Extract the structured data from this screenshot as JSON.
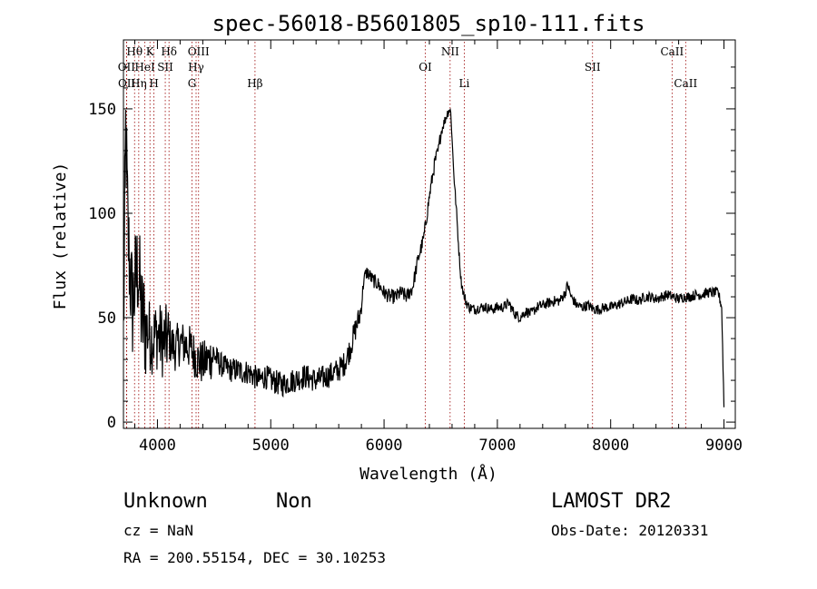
{
  "chart_data": {
    "type": "line",
    "title": "spec-56018-B5601805_sp10-111.fits",
    "xlabel": "Wavelength (Å)",
    "ylabel": "Flux (relative)",
    "xlim": [
      3700,
      9100
    ],
    "ylim": [
      -3,
      183
    ],
    "xticks": [
      4000,
      5000,
      6000,
      7000,
      8000,
      9000
    ],
    "yticks": [
      0,
      50,
      100,
      150
    ],
    "grid": false,
    "series": [
      {
        "x": [
          3700,
          3720,
          3740,
          3760,
          3780,
          3800,
          3830,
          3860,
          3900,
          3950,
          4000,
          4050,
          4100,
          4150,
          4200,
          4250,
          4300,
          4350,
          4400,
          4450,
          4500,
          4550,
          4600,
          4650,
          4700,
          4750,
          4800,
          4850,
          4900,
          4950,
          5000,
          5100,
          5200,
          5300,
          5400,
          5500,
          5600,
          5650,
          5700,
          5750,
          5780,
          5800,
          5820,
          5850,
          5900,
          5950,
          6000,
          6050,
          6100,
          6150,
          6200,
          6250,
          6300,
          6350,
          6400,
          6420,
          6450,
          6480,
          6500,
          6520,
          6540,
          6560,
          6575,
          6590,
          6600,
          6610,
          6620,
          6640,
          6660,
          6680,
          6700,
          6720,
          6750,
          6800,
          6850,
          6900,
          6950,
          7000,
          7050,
          7100,
          7150,
          7200,
          7250,
          7300,
          7350,
          7400,
          7450,
          7500,
          7550,
          7600,
          7620,
          7650,
          7700,
          7750,
          7800,
          7850,
          7900,
          7950,
          8000,
          8050,
          8100,
          8150,
          8200,
          8250,
          8300,
          8350,
          8400,
          8450,
          8500,
          8550,
          8600,
          8650,
          8700,
          8750,
          8800,
          8850,
          8900,
          8950,
          8980,
          9000
        ],
        "values": [
          40,
          140,
          90,
          70,
          55,
          65,
          75,
          50,
          45,
          40,
          42,
          38,
          40,
          35,
          38,
          37,
          35,
          30,
          28,
          30,
          32,
          28,
          26,
          25,
          25,
          24,
          24,
          22,
          20,
          22,
          20,
          18,
          20,
          22,
          20,
          22,
          25,
          28,
          35,
          45,
          50,
          55,
          68,
          72,
          68,
          66,
          62,
          60,
          60,
          62,
          60,
          64,
          78,
          88,
          108,
          115,
          125,
          130,
          138,
          142,
          145,
          148,
          150,
          148,
          135,
          125,
          115,
          100,
          82,
          68,
          62,
          58,
          55,
          54,
          55,
          55,
          54,
          55,
          55,
          57,
          52,
          50,
          53,
          52,
          55,
          56,
          57,
          58,
          58,
          62,
          66,
          60,
          56,
          55,
          56,
          54,
          54,
          55,
          55,
          56,
          57,
          58,
          59,
          58,
          60,
          60,
          59,
          60,
          61,
          60,
          59,
          60,
          60,
          61,
          61,
          62,
          62,
          62,
          55,
          8
        ]
      }
    ],
    "annotations": [
      {
        "text": "Hθ",
        "x": 3798,
        "row": 0
      },
      {
        "text": "K",
        "x": 3934,
        "row": 0
      },
      {
        "text": "Hδ",
        "x": 4102,
        "row": 0
      },
      {
        "text": "OIII",
        "x": 4363,
        "row": 0
      },
      {
        "text": "NII",
        "x": 6583,
        "row": 0
      },
      {
        "text": "CaII",
        "x": 8542,
        "row": 0
      },
      {
        "text": "OII",
        "x": 3727,
        "row": 1
      },
      {
        "text": "HeI",
        "x": 3889,
        "row": 1
      },
      {
        "text": "SII",
        "x": 4069,
        "row": 1
      },
      {
        "text": "Hγ",
        "x": 4341,
        "row": 1
      },
      {
        "text": "OI",
        "x": 6364,
        "row": 1
      },
      {
        "text": "SII",
        "x": 7840,
        "row": 1
      },
      {
        "text": "OII",
        "x": 3729,
        "row": 2
      },
      {
        "text": "Hη",
        "x": 3835,
        "row": 2
      },
      {
        "text": "H",
        "x": 3969,
        "row": 2
      },
      {
        "text": "G",
        "x": 4305,
        "row": 2
      },
      {
        "text": "Hβ",
        "x": 4861,
        "row": 2
      },
      {
        "text": "Li",
        "x": 6708,
        "row": 2
      },
      {
        "text": "CaII",
        "x": 8662,
        "row": 2
      }
    ]
  },
  "info": {
    "class": "Unknown",
    "subclass": "Non",
    "survey": "LAMOST DR2",
    "cz": "cz = NaN",
    "obs_date": "Obs-Date: 20120331",
    "coords": "RA = 200.55154, DEC =  30.10253"
  }
}
